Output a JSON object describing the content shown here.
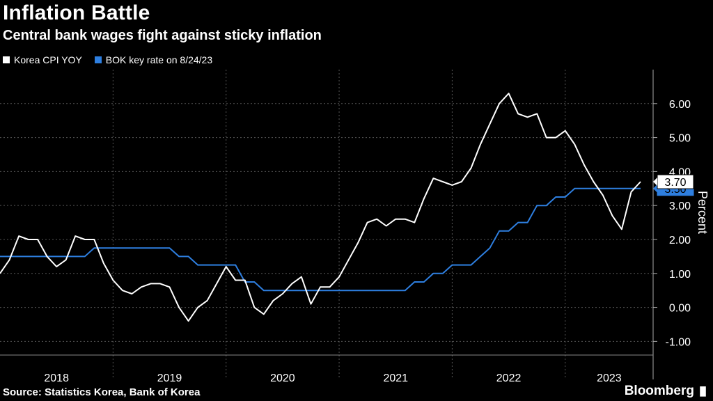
{
  "title": "Inflation Battle",
  "subtitle": "Central bank wages fight against sticky inflation",
  "source": "Source: Statistics Korea, Bank of Korea",
  "brand": "Bloomberg",
  "chart_data": {
    "type": "line",
    "ylabel": "Percent",
    "ylim": [
      -1.3,
      7.0
    ],
    "y_ticks": [
      -1.0,
      0.0,
      1.0,
      2.0,
      3.0,
      4.0,
      5.0,
      6.0
    ],
    "y_tick_labels": [
      "-1.00",
      "0.00",
      "1.00",
      "2.00",
      "3.00",
      "4.00",
      "5.00",
      "6.00"
    ],
    "x_start": "2018-01",
    "x_end": "2023-07",
    "year_labels": [
      "2018",
      "2019",
      "2020",
      "2021",
      "2022",
      "2023"
    ],
    "grid": true,
    "series": [
      {
        "name": "Korea CPI YOY",
        "color": "#ffffff",
        "end_label": "3.70",
        "values": [
          1.0,
          1.4,
          2.1,
          2.0,
          2.0,
          1.5,
          1.2,
          1.4,
          2.1,
          2.0,
          2.0,
          1.3,
          0.8,
          0.5,
          0.4,
          0.6,
          0.7,
          0.7,
          0.6,
          0.0,
          -0.4,
          0.0,
          0.2,
          0.7,
          1.2,
          0.8,
          0.8,
          0.0,
          -0.2,
          0.2,
          0.4,
          0.7,
          0.9,
          0.1,
          0.6,
          0.6,
          0.9,
          1.4,
          1.9,
          2.5,
          2.6,
          2.4,
          2.6,
          2.6,
          2.5,
          3.2,
          3.8,
          3.7,
          3.6,
          3.7,
          4.1,
          4.8,
          5.4,
          6.0,
          6.3,
          5.7,
          5.6,
          5.7,
          5.0,
          5.0,
          5.2,
          4.8,
          4.2,
          3.7,
          3.3,
          2.7,
          2.3,
          3.4,
          3.7
        ]
      },
      {
        "name": "BOK key rate on 8/24/23",
        "color": "#2e7fe0",
        "end_label": "3.50",
        "values": [
          1.5,
          1.5,
          1.5,
          1.5,
          1.5,
          1.5,
          1.5,
          1.5,
          1.5,
          1.5,
          1.75,
          1.75,
          1.75,
          1.75,
          1.75,
          1.75,
          1.75,
          1.75,
          1.75,
          1.5,
          1.5,
          1.25,
          1.25,
          1.25,
          1.25,
          1.25,
          0.75,
          0.75,
          0.5,
          0.5,
          0.5,
          0.5,
          0.5,
          0.5,
          0.5,
          0.5,
          0.5,
          0.5,
          0.5,
          0.5,
          0.5,
          0.5,
          0.5,
          0.5,
          0.75,
          0.75,
          1.0,
          1.0,
          1.25,
          1.25,
          1.25,
          1.5,
          1.75,
          2.25,
          2.25,
          2.5,
          2.5,
          3.0,
          3.0,
          3.25,
          3.25,
          3.5,
          3.5,
          3.5,
          3.5,
          3.5,
          3.5,
          3.5,
          3.5
        ]
      }
    ]
  }
}
